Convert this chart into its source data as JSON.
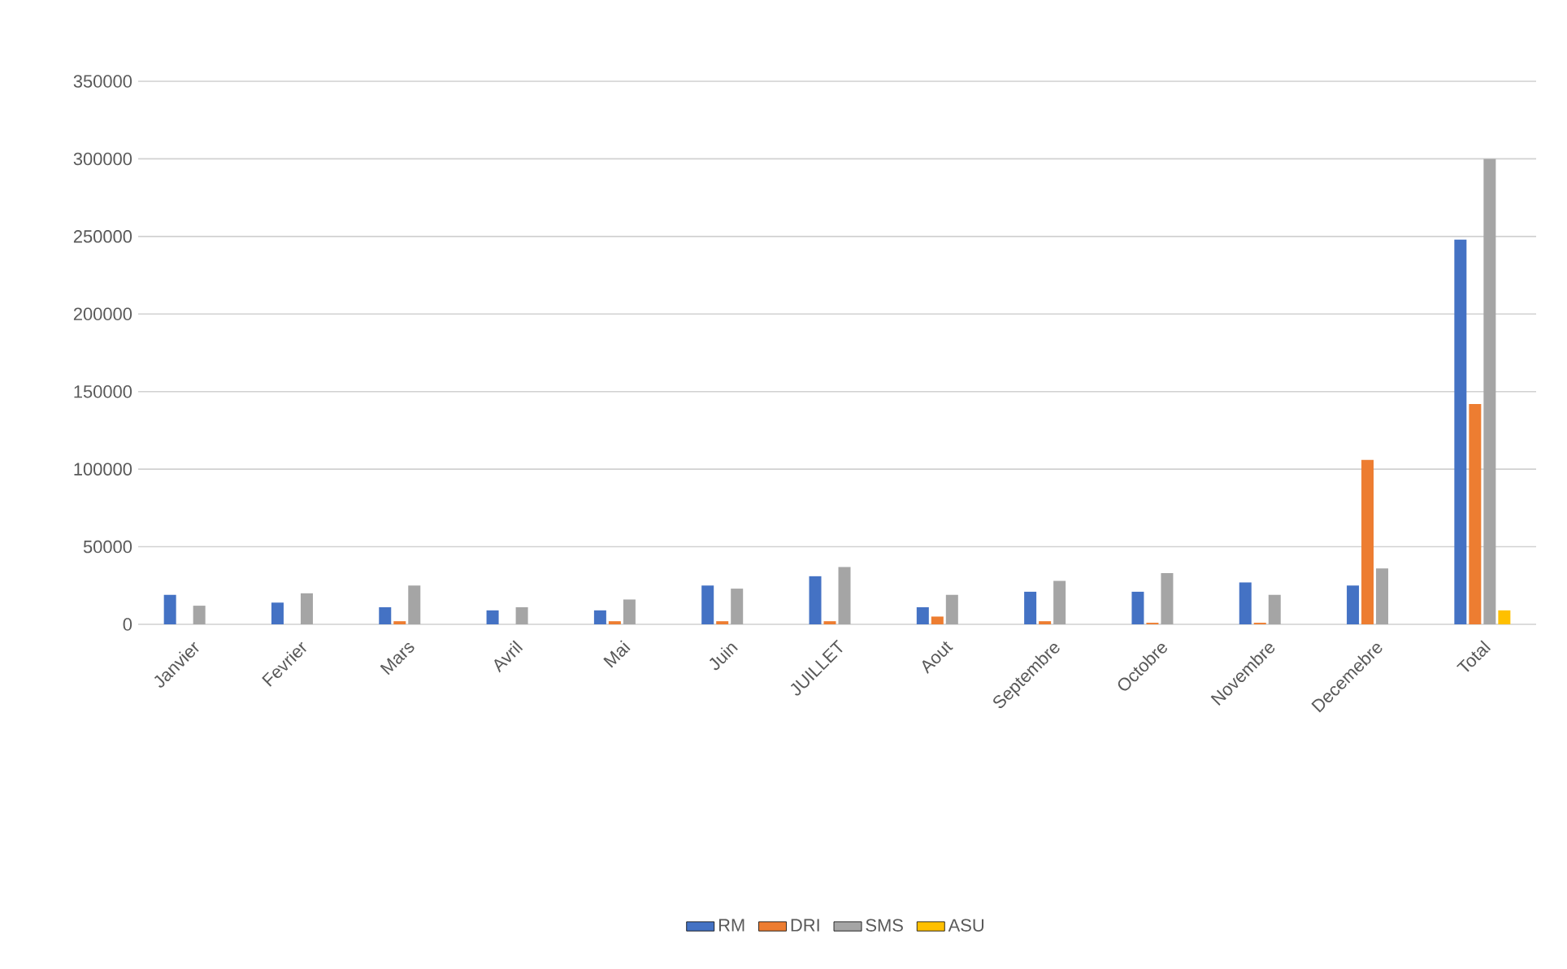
{
  "chart_data": {
    "type": "bar",
    "categories": [
      "Janvier",
      "Fevrier",
      "Mars",
      "Avril",
      "Mai",
      "Juin",
      "JUILLET",
      "Aout",
      "Septembre",
      "Octobre",
      "Novembre",
      "Decemebre",
      "Total"
    ],
    "series": [
      {
        "name": "RM",
        "color": "#4472c4",
        "values": [
          19000,
          14000,
          11000,
          9000,
          9000,
          25000,
          31000,
          11000,
          21000,
          21000,
          27000,
          25000,
          248000
        ]
      },
      {
        "name": "DRI",
        "color": "#ed7d31",
        "values": [
          0,
          0,
          2000,
          0,
          2000,
          2000,
          2000,
          5000,
          2000,
          1000,
          1000,
          106000,
          142000
        ]
      },
      {
        "name": "SMS",
        "color": "#a5a5a5",
        "values": [
          12000,
          20000,
          25000,
          11000,
          16000,
          23000,
          37000,
          19000,
          28000,
          33000,
          19000,
          36000,
          300000
        ]
      },
      {
        "name": "ASU",
        "color": "#ffc000",
        "values": [
          0,
          0,
          0,
          0,
          0,
          0,
          0,
          0,
          0,
          0,
          0,
          0,
          9000
        ]
      }
    ],
    "ylim": [
      0,
      350000
    ],
    "yticks": [
      0,
      50000,
      100000,
      150000,
      200000,
      250000,
      300000,
      350000
    ],
    "grid": "y",
    "legend": "bottom"
  }
}
